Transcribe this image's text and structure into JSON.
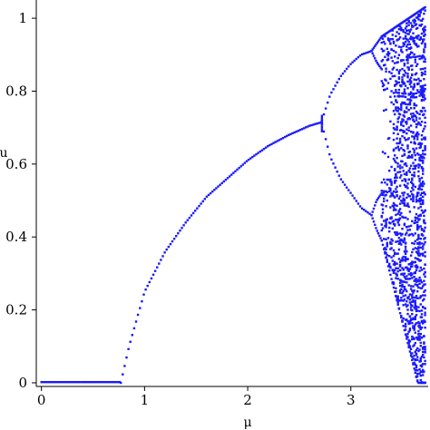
{
  "chart_data": {
    "type": "scatter",
    "title": "",
    "xlabel": "μ",
    "ylabel": "u",
    "xlim": [
      -0.05,
      3.75
    ],
    "ylim": [
      -0.01,
      1.05
    ],
    "xticks": [
      0,
      1,
      2,
      3
    ],
    "xtick_labels": [
      "0",
      "1",
      "2",
      "3"
    ],
    "yticks": [
      0,
      0.2,
      0.4,
      0.6,
      0.8,
      1
    ],
    "ytick_labels": [
      "0",
      "0.2",
      "0.4",
      "0.6",
      "0.8",
      "1"
    ],
    "grid": false,
    "legend": "none",
    "marker_color": "#1a1aff",
    "series": [
      {
        "description_points": "bifurcation diagram of logistic-type map",
        "x": [
          0.0,
          0.2,
          0.4,
          0.6,
          0.75,
          0.8,
          0.9,
          1.0,
          1.2,
          1.4,
          1.6,
          1.8,
          2.0,
          2.2,
          2.4,
          2.6,
          2.72,
          2.8,
          2.9,
          3.0,
          3.1,
          3.2,
          3.25,
          3.3,
          3.4,
          3.5,
          3.6,
          3.7
        ],
        "branches": {
          "fixed_zero": {
            "x_range": [
              0,
              0.77
            ],
            "y": 0
          },
          "stable_branch": {
            "x": [
              0.77,
              0.85,
              1.0,
              1.2,
              1.4,
              1.6,
              1.8,
              2.0,
              2.2,
              2.4,
              2.6,
              2.72
            ],
            "y": [
              0.0,
              0.1,
              0.25,
              0.36,
              0.44,
              0.51,
              0.56,
              0.61,
              0.65,
              0.68,
              0.705,
              0.715
            ]
          },
          "period2_upper": {
            "x": [
              2.72,
              2.8,
              2.9,
              3.0,
              3.1,
              3.2
            ],
            "y": [
              0.72,
              0.79,
              0.84,
              0.875,
              0.9,
              0.91
            ]
          },
          "period2_lower": {
            "x": [
              2.72,
              2.8,
              2.9,
              3.0,
              3.1,
              3.2
            ],
            "y": [
              0.71,
              0.62,
              0.56,
              0.52,
              0.48,
              0.46
            ]
          },
          "period4": {
            "x": [
              3.2,
              3.25,
              3.3
            ],
            "y_upper": [
              0.91,
              0.93,
              0.95
            ],
            "y_mid_upper": [
              0.91,
              0.88,
              0.86
            ],
            "y_mid_lower": [
              0.46,
              0.5,
              0.52
            ],
            "y_lower": [
              0.46,
              0.42,
              0.39
            ]
          },
          "chaotic_band": {
            "x_range": [
              3.3,
              3.72
            ],
            "y_range": [
              0.0,
              1.03
            ]
          }
        }
      }
    ]
  }
}
